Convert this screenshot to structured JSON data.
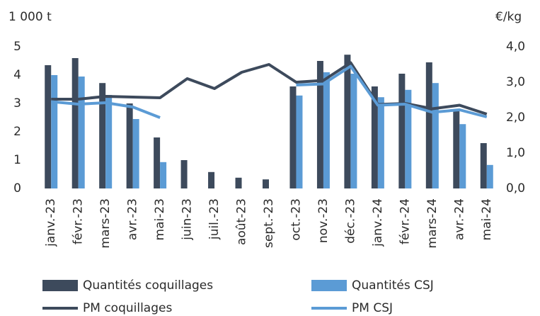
{
  "chart_data": {
    "type": "bar",
    "ylabel": "1 000 t",
    "y2label": "€/kg",
    "categories": [
      "janv.-23",
      "févr.-23",
      "mars-23",
      "avr.-23",
      "mai-23",
      "juin-23",
      "juil.-23",
      "août-23",
      "sept.-23",
      "oct.-23",
      "nov.-23",
      "déc.-23",
      "janv.-24",
      "févr.-24",
      "mars-24",
      "avr.-24",
      "mai-24"
    ],
    "series": [
      {
        "name": "Quantités coquillages",
        "type": "bar",
        "color": "#3d4a5c",
        "values": [
          4.35,
          4.6,
          3.72,
          3.0,
          1.8,
          1.0,
          0.58,
          0.38,
          0.32,
          3.6,
          4.5,
          4.72,
          3.6,
          4.05,
          4.45,
          2.75,
          1.6
        ]
      },
      {
        "name": "Quantités CSJ",
        "type": "bar",
        "color": "#5b9bd5",
        "values": [
          4.0,
          3.95,
          3.3,
          2.45,
          0.93,
          null,
          null,
          null,
          null,
          3.28,
          4.1,
          4.05,
          3.22,
          3.48,
          3.72,
          2.27,
          0.83
        ]
      },
      {
        "name": "PM coquillages",
        "type": "line",
        "axis": "y2",
        "color": "#3d4a5c",
        "values": [
          2.52,
          2.52,
          2.6,
          2.58,
          2.56,
          3.1,
          2.82,
          3.28,
          3.5,
          3.0,
          3.05,
          3.55,
          2.37,
          2.4,
          2.25,
          2.35,
          2.1
        ]
      },
      {
        "name": "PM CSJ",
        "type": "line",
        "axis": "y2",
        "color": "#5b9bd5",
        "values": [
          2.45,
          2.38,
          2.42,
          2.3,
          2.0,
          null,
          null,
          null,
          null,
          2.92,
          2.95,
          3.45,
          2.35,
          2.38,
          2.15,
          2.22,
          2.02
        ]
      }
    ],
    "ylim": [
      0,
      5
    ],
    "yticks": [
      0,
      1,
      2,
      3,
      4,
      5
    ],
    "y2lim": [
      0,
      4
    ],
    "y2ticks": [
      {
        "value": 0,
        "label": "0,0"
      },
      {
        "value": 1,
        "label": "1,0"
      },
      {
        "value": 2,
        "label": "2,0"
      },
      {
        "value": 3,
        "label": "3,0"
      },
      {
        "value": 4,
        "label": "4,0"
      }
    ],
    "grid": false
  }
}
